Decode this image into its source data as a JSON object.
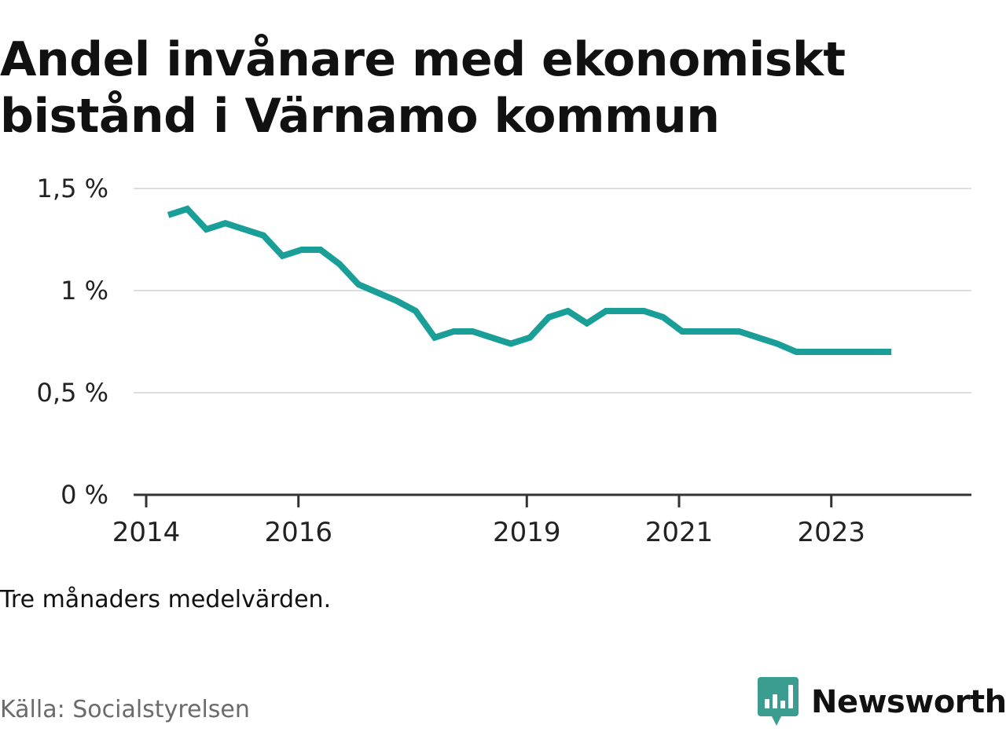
{
  "chart_data": {
    "type": "line",
    "title": "Andel invånare med ekonomiskt bistånd i Värnamo kommun",
    "note": "Tre månaders medelvärden.",
    "source": "Källa: Socialstyrelsen",
    "brand": "Newsworthy",
    "xlabel": "",
    "ylabel": "",
    "ylim": [
      0,
      1.5
    ],
    "xlim": [
      2014.0,
      2024.5
    ],
    "y_ticks": [
      {
        "value": 0,
        "label": "0 %"
      },
      {
        "value": 0.5,
        "label": "0,5 %"
      },
      {
        "value": 1,
        "label": "1 %"
      },
      {
        "value": 1.5,
        "label": "1,5 %"
      }
    ],
    "x_ticks": [
      {
        "value": 2014,
        "label": "2014"
      },
      {
        "value": 2016,
        "label": "2016"
      },
      {
        "value": 2019,
        "label": "2019"
      },
      {
        "value": 2021,
        "label": "2021"
      },
      {
        "value": 2023,
        "label": "2023"
      }
    ],
    "grid": true,
    "line_color": "#1a9e98",
    "series": [
      {
        "name": "Andel invånare med ekonomiskt bistånd",
        "x": [
          2014.29,
          2014.54,
          2014.79,
          2015.04,
          2015.29,
          2015.54,
          2015.79,
          2016.04,
          2016.29,
          2016.54,
          2016.79,
          2017.04,
          2017.29,
          2017.54,
          2017.79,
          2018.04,
          2018.29,
          2018.54,
          2018.79,
          2019.04,
          2019.29,
          2019.54,
          2019.79,
          2020.04,
          2020.29,
          2020.54,
          2020.79,
          2021.04,
          2021.29,
          2021.54,
          2021.79,
          2022.04,
          2022.29,
          2022.54,
          2022.79,
          2023.04,
          2023.29,
          2023.54,
          2023.79
        ],
        "values": [
          1.37,
          1.4,
          1.3,
          1.33,
          1.3,
          1.27,
          1.17,
          1.2,
          1.2,
          1.13,
          1.03,
          0.99,
          0.95,
          0.9,
          0.77,
          0.8,
          0.8,
          0.77,
          0.74,
          0.77,
          0.87,
          0.9,
          0.84,
          0.9,
          0.9,
          0.9,
          0.87,
          0.8,
          0.8,
          0.8,
          0.8,
          0.77,
          0.74,
          0.7,
          0.7,
          0.7,
          0.7,
          0.7,
          0.7
        ]
      }
    ]
  },
  "colors": {
    "grid": "#dddddd",
    "axis": "#333333",
    "brand_teal": "#3a9d8f"
  },
  "icons": {
    "brand": "newsworthy-logo-icon"
  }
}
